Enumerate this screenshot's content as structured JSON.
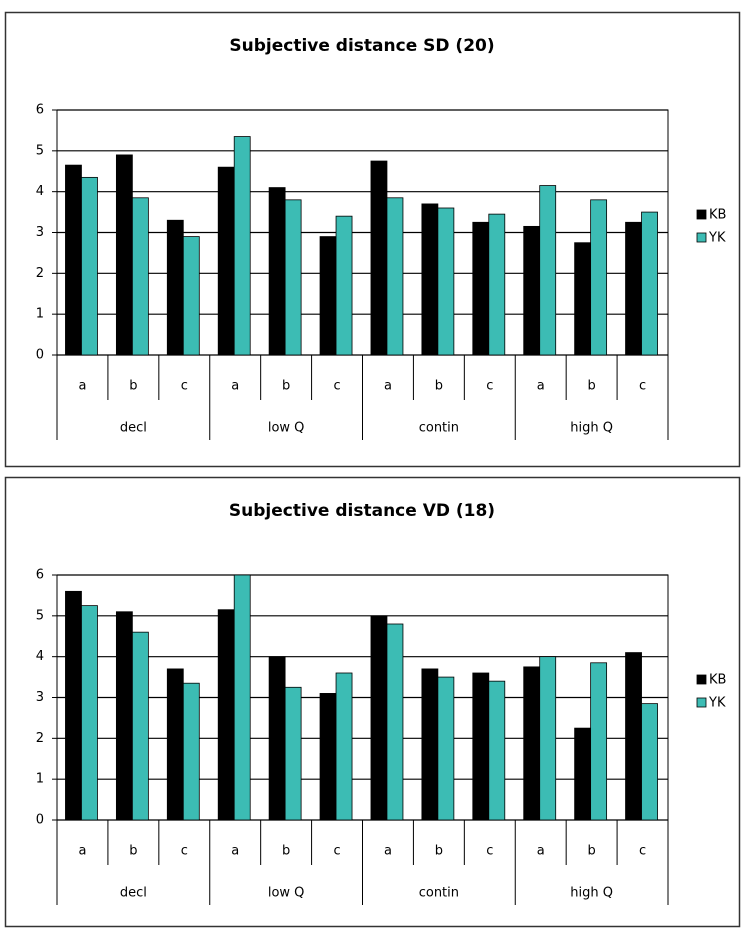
{
  "chart_data": [
    {
      "type": "bar",
      "title": "Subjective distance SD (20)",
      "categories": [
        "a",
        "b",
        "c",
        "a",
        "b",
        "c",
        "a",
        "b",
        "c",
        "a",
        "b",
        "c"
      ],
      "groups": [
        "decl",
        "low Q",
        "contin",
        "high Q"
      ],
      "series": [
        {
          "name": "KB",
          "color": "#000000",
          "values": [
            4.65,
            4.9,
            3.3,
            4.6,
            4.1,
            2.9,
            4.75,
            3.7,
            3.25,
            3.15,
            2.75,
            3.25
          ]
        },
        {
          "name": "YK",
          "color": "#3cbcb4",
          "values": [
            4.35,
            3.85,
            2.9,
            5.35,
            3.8,
            3.4,
            3.85,
            3.6,
            3.45,
            4.15,
            3.8,
            3.5
          ]
        }
      ],
      "ylim": [
        0,
        6
      ],
      "yticks": [
        0,
        1,
        2,
        3,
        4,
        5,
        6
      ],
      "grid": true,
      "legend": "right"
    },
    {
      "type": "bar",
      "title": "Subjective distance VD (18)",
      "categories": [
        "a",
        "b",
        "c",
        "a",
        "b",
        "c",
        "a",
        "b",
        "c",
        "a",
        "b",
        "c"
      ],
      "groups": [
        "decl",
        "low Q",
        "contin",
        "high Q"
      ],
      "series": [
        {
          "name": "KB",
          "color": "#000000",
          "values": [
            5.6,
            5.1,
            3.7,
            5.15,
            4.0,
            3.1,
            5.0,
            3.7,
            3.6,
            3.75,
            2.25,
            4.1
          ]
        },
        {
          "name": "YK",
          "color": "#3cbcb4",
          "values": [
            5.25,
            4.6,
            3.35,
            6.0,
            3.25,
            3.6,
            4.8,
            3.5,
            3.4,
            4.0,
            3.85,
            2.85
          ]
        }
      ],
      "ylim": [
        0,
        6
      ],
      "yticks": [
        0,
        1,
        2,
        3,
        4,
        5,
        6
      ],
      "grid": true,
      "legend": "right"
    }
  ]
}
